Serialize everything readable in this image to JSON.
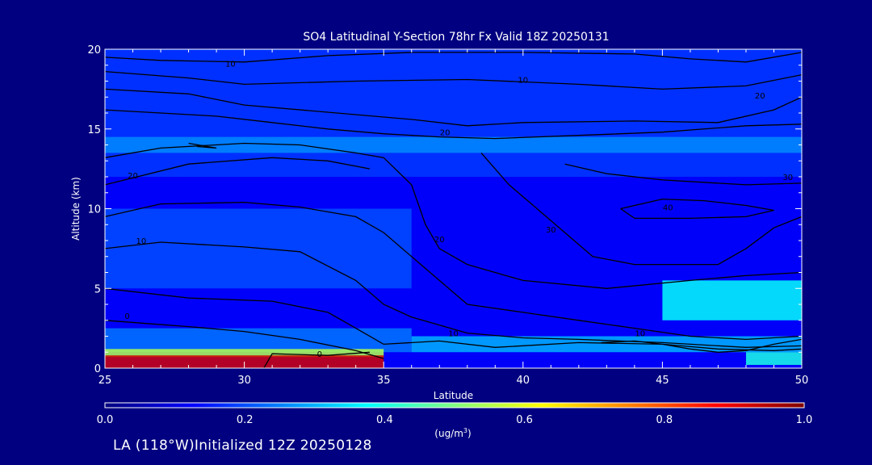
{
  "chart_data": {
    "type": "heatmap",
    "title": "SO4 Latitudinal Y-Section 78hr  Fx Valid 18Z 20250131",
    "xlabel": "Latitude",
    "ylabel": "Altitude (km)",
    "xlim": [
      25,
      50
    ],
    "ylim": [
      0,
      20
    ],
    "xticks": [
      "25",
      "30",
      "35",
      "40",
      "45",
      "50"
    ],
    "yticks": [
      "0",
      "5",
      "10",
      "15",
      "20"
    ],
    "colorbar": {
      "label": "(ug/m",
      "label_sup": "3",
      "label_end": ")",
      "min": 0.0,
      "max": 1.0,
      "ticks": [
        "0.0",
        "0.2",
        "0.4",
        "0.6",
        "0.8",
        "1.0"
      ],
      "colors": [
        "#00007f",
        "#0000ff",
        "#0080ff",
        "#00ffff",
        "#80ff80",
        "#ffff00",
        "#ff8000",
        "#ff0000",
        "#7f0000"
      ]
    },
    "background_value": 0.12,
    "regions": [
      {
        "x": [
          25,
          50
        ],
        "y": [
          12,
          20
        ],
        "value": 0.18
      },
      {
        "x": [
          25,
          50
        ],
        "y": [
          13.5,
          14.5
        ],
        "value": 0.26
      },
      {
        "x": [
          25,
          36
        ],
        "y": [
          5,
          10
        ],
        "value": 0.2
      },
      {
        "x": [
          25,
          36
        ],
        "y": [
          1,
          2.5
        ],
        "value": 0.24
      },
      {
        "x": [
          25,
          35
        ],
        "y": [
          0.7,
          1.2
        ],
        "value": 0.55
      },
      {
        "x": [
          25,
          35
        ],
        "y": [
          0,
          0.8
        ],
        "value": 0.92
      },
      {
        "x": [
          36,
          50
        ],
        "y": [
          1,
          2
        ],
        "value": 0.3
      },
      {
        "x": [
          45,
          50
        ],
        "y": [
          3,
          5.5
        ],
        "value": 0.38
      },
      {
        "x": [
          48,
          50
        ],
        "y": [
          0.2,
          1
        ],
        "value": 0.4
      }
    ],
    "contours": [
      {
        "label": "10",
        "points": [
          [
            25,
            19.5
          ],
          [
            27,
            19.3
          ],
          [
            30,
            19.2
          ],
          [
            33,
            19.6
          ],
          [
            36,
            19.8
          ],
          [
            40,
            19.8
          ],
          [
            44,
            19.7
          ],
          [
            46,
            19.4
          ],
          [
            48,
            19.2
          ],
          [
            50,
            19.8
          ]
        ],
        "label_at": [
          29.5,
          18.9
        ]
      },
      {
        "label": "10",
        "points": [
          [
            25,
            18.6
          ],
          [
            28,
            18.2
          ],
          [
            30,
            17.8
          ],
          [
            34,
            18.0
          ],
          [
            38,
            18.1
          ],
          [
            42,
            17.8
          ],
          [
            45,
            17.5
          ],
          [
            48,
            17.7
          ],
          [
            50,
            18.4
          ]
        ],
        "label_at": [
          40,
          17.9
        ]
      },
      {
        "label": "20",
        "points": [
          [
            25,
            17.5
          ],
          [
            28,
            17.2
          ],
          [
            30,
            16.5
          ],
          [
            34,
            15.9
          ],
          [
            36,
            15.6
          ],
          [
            38,
            15.2
          ],
          [
            40,
            15.4
          ],
          [
            44,
            15.5
          ],
          [
            47,
            15.4
          ],
          [
            49,
            16.2
          ],
          [
            50,
            17.0
          ]
        ],
        "label_at": [
          48.5,
          16.9
        ]
      },
      {
        "label": "20",
        "points": [
          [
            25,
            16.2
          ],
          [
            29,
            15.8
          ],
          [
            31,
            15.4
          ],
          [
            33,
            15.0
          ],
          [
            35,
            14.7
          ],
          [
            37,
            14.5
          ],
          [
            39,
            14.4
          ],
          [
            42,
            14.6
          ],
          [
            45,
            14.8
          ],
          [
            48,
            15.2
          ],
          [
            50,
            15.3
          ]
        ],
        "label_at": [
          37.2,
          14.6
        ]
      },
      {
        "label": "20",
        "points": [
          [
            25,
            13.2
          ],
          [
            27,
            13.8
          ],
          [
            30,
            14.1
          ],
          [
            32,
            14.0
          ],
          [
            34,
            13.5
          ],
          [
            35,
            13.2
          ],
          [
            36,
            11.5
          ],
          [
            36.5,
            9.0
          ],
          [
            37,
            7.5
          ],
          [
            38,
            6.5
          ],
          [
            40,
            5.5
          ],
          [
            43,
            5.0
          ],
          [
            46,
            5.5
          ],
          [
            48,
            5.8
          ],
          [
            50,
            6.0
          ]
        ],
        "label_at": [
          37,
          7.9
        ]
      },
      {
        "label": "20",
        "points": [
          [
            25,
            11.5
          ],
          [
            28,
            12.8
          ],
          [
            31,
            13.2
          ],
          [
            33,
            13.0
          ],
          [
            34.5,
            12.5
          ]
        ],
        "label_at": [
          26,
          11.9
        ]
      },
      {
        "label": "30",
        "points": [
          [
            38.5,
            13.5
          ],
          [
            39.5,
            11.5
          ],
          [
            40.5,
            10.0
          ],
          [
            41.5,
            8.5
          ],
          [
            42.5,
            7.0
          ],
          [
            44,
            6.5
          ],
          [
            47,
            6.5
          ],
          [
            48,
            7.5
          ],
          [
            49,
            8.8
          ],
          [
            50,
            9.5
          ]
        ],
        "label_at": [
          41,
          8.5
        ]
      },
      {
        "label": "30",
        "points": [
          [
            41.5,
            12.8
          ],
          [
            43,
            12.2
          ],
          [
            45,
            11.8
          ],
          [
            48,
            11.5
          ],
          [
            50,
            11.6
          ]
        ],
        "label_at": [
          49.5,
          11.8
        ]
      },
      {
        "label": "40",
        "points": [
          [
            43.5,
            10.0
          ],
          [
            45,
            10.6
          ],
          [
            46.5,
            10.5
          ],
          [
            48,
            10.2
          ],
          [
            49,
            9.9
          ],
          [
            48,
            9.5
          ],
          [
            46,
            9.4
          ],
          [
            44,
            9.4
          ],
          [
            43.5,
            10.0
          ]
        ],
        "label_at": [
          45.2,
          9.9
        ]
      },
      {
        "label": "10",
        "points": [
          [
            25,
            9.5
          ],
          [
            27,
            10.3
          ],
          [
            30,
            10.4
          ],
          [
            32,
            10.1
          ],
          [
            34,
            9.5
          ],
          [
            35,
            8.5
          ],
          [
            36,
            7.0
          ],
          [
            37,
            5.5
          ],
          [
            38,
            4.0
          ],
          [
            40,
            3.5
          ],
          [
            42,
            3.0
          ],
          [
            44,
            2.5
          ],
          [
            46,
            2.0
          ],
          [
            48,
            1.8
          ],
          [
            50,
            2.0
          ]
        ],
        "label_at": [
          26.3,
          7.8
        ]
      },
      {
        "label": "10",
        "points": [
          [
            25,
            7.5
          ],
          [
            27,
            7.9
          ],
          [
            30,
            7.6
          ],
          [
            32,
            7.3
          ],
          [
            34,
            5.5
          ],
          [
            35,
            4.0
          ],
          [
            36,
            3.2
          ],
          [
            38,
            2.2
          ],
          [
            40,
            1.9
          ],
          [
            42,
            1.8
          ],
          [
            45,
            1.6
          ],
          [
            48,
            1.3
          ],
          [
            50,
            1.4
          ]
        ],
        "label_at": [
          37.5,
          2.0
        ]
      },
      {
        "label": "0",
        "points": [
          [
            25,
            5.0
          ],
          [
            28,
            4.4
          ],
          [
            31,
            4.2
          ],
          [
            33,
            3.5
          ],
          [
            34,
            2.5
          ],
          [
            35,
            1.5
          ],
          [
            37,
            1.7
          ],
          [
            39,
            1.3
          ],
          [
            42,
            1.6
          ],
          [
            45,
            1.5
          ],
          [
            47,
            1.2
          ],
          [
            49,
            1.1
          ],
          [
            50,
            1.2
          ]
        ],
        "label_at": [
          25.8,
          3.1
        ]
      },
      {
        "label": "0",
        "points": [
          [
            25,
            3.0
          ],
          [
            28,
            2.6
          ],
          [
            30,
            2.3
          ],
          [
            32,
            1.8
          ],
          [
            34,
            1.1
          ],
          [
            35,
            0.6
          ]
        ],
        "label_at": [
          32.7,
          0.7
        ]
      },
      {
        "label": "10",
        "points": [
          [
            42.8,
            1.6
          ],
          [
            44,
            1.7
          ],
          [
            45,
            1.5
          ],
          [
            46,
            1.2
          ],
          [
            47,
            1.0
          ],
          [
            48,
            1.1
          ],
          [
            49,
            1.5
          ],
          [
            50,
            1.8
          ]
        ],
        "label_at": [
          44.2,
          2.0
        ]
      },
      {
        "label": "",
        "points": [
          [
            30.7,
            0.0
          ],
          [
            31,
            0.9
          ],
          [
            33,
            0.8
          ],
          [
            34.5,
            1.0
          ]
        ],
        "label_at": null
      },
      {
        "label": "",
        "points": [
          [
            28,
            14.1
          ],
          [
            29,
            13.8
          ],
          [
            28.3,
            13.9
          ]
        ],
        "label_at": null
      }
    ]
  },
  "footer": {
    "text": "LA (118°W)Initialized 12Z 20250128"
  }
}
